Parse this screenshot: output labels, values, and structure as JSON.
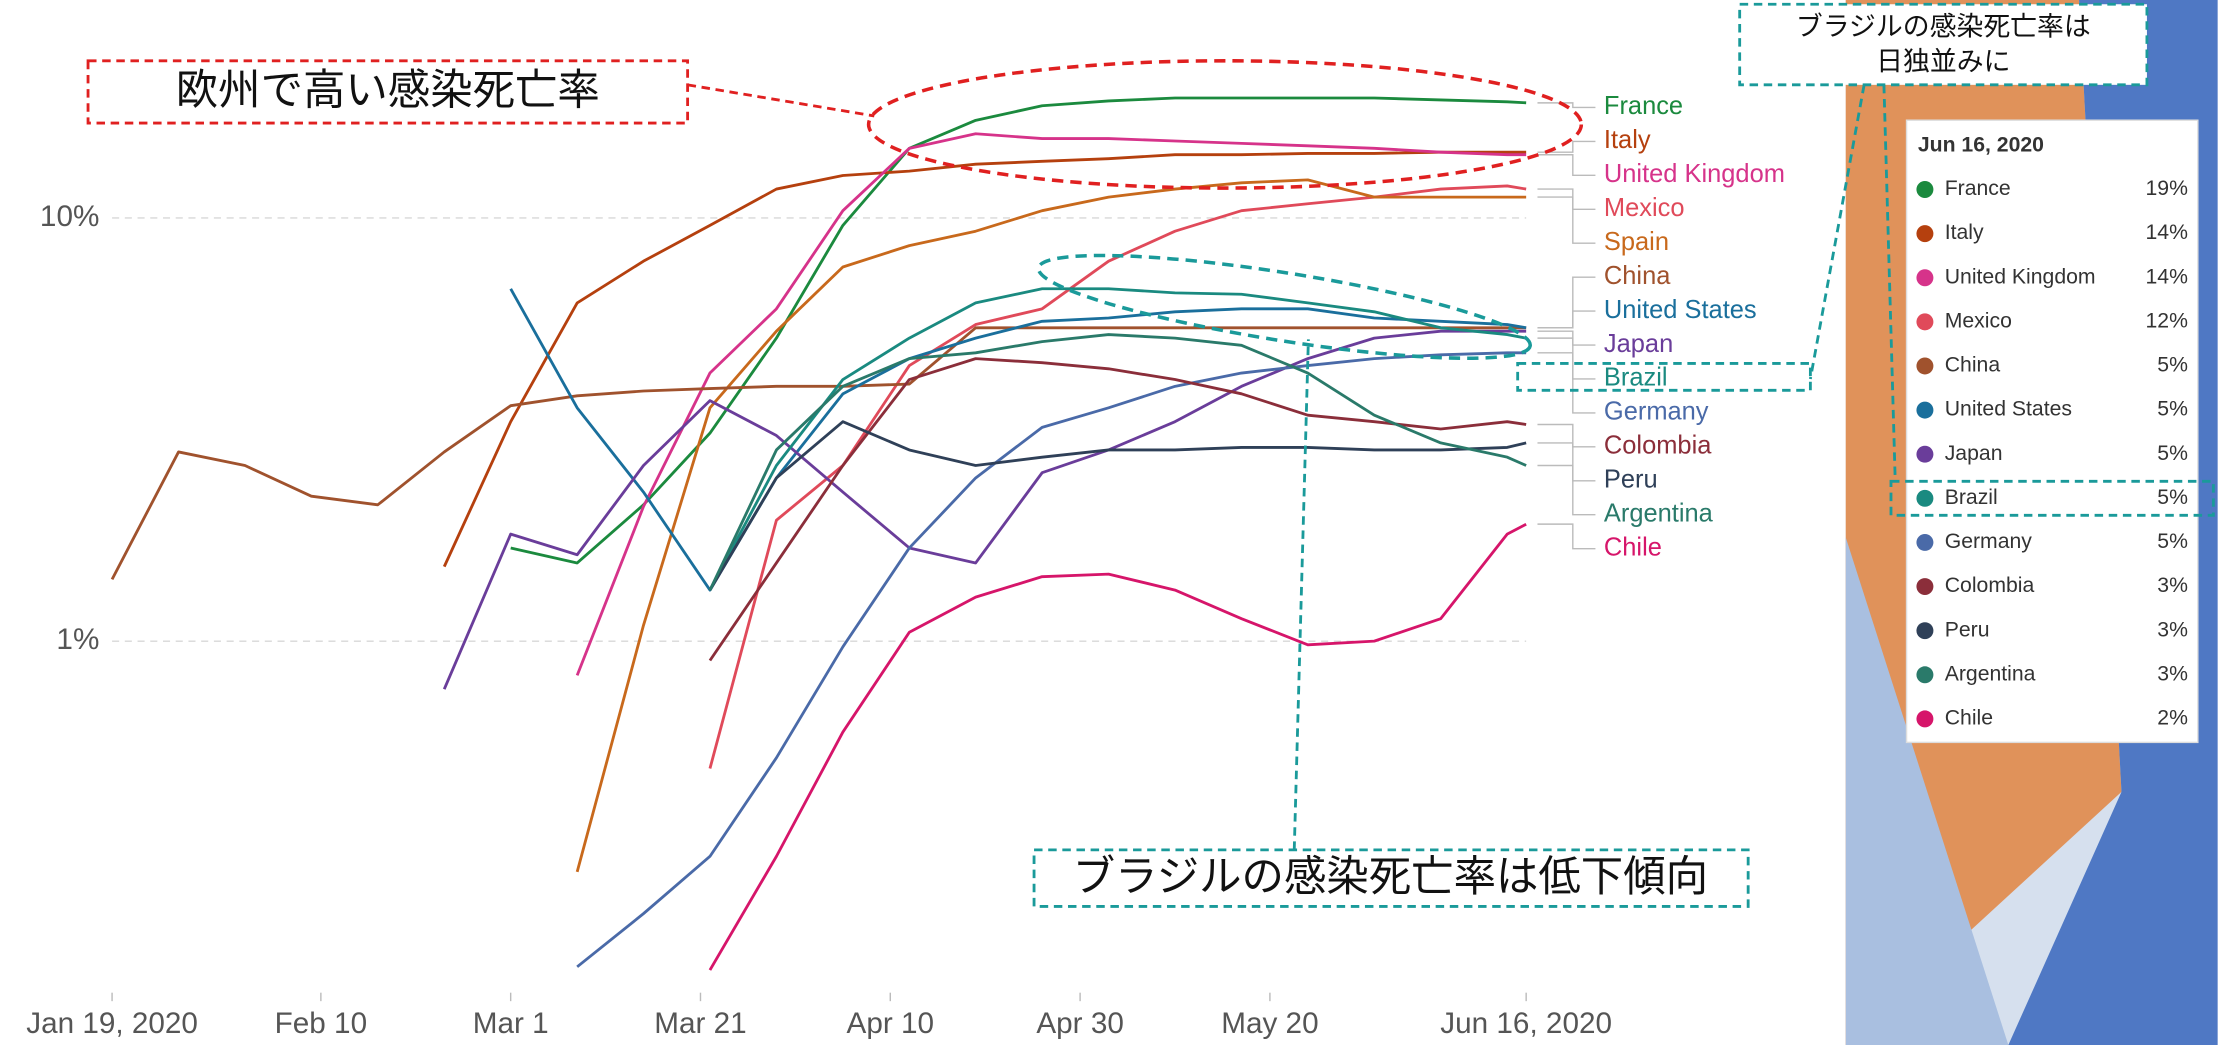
{
  "chart_data": {
    "type": "line",
    "log_y": true,
    "grid": true,
    "x": [
      "2020-01-19",
      "2020-01-26",
      "2020-02-02",
      "2020-02-09",
      "2020-02-16",
      "2020-02-23",
      "2020-03-01",
      "2020-03-08",
      "2020-03-15",
      "2020-03-22",
      "2020-03-29",
      "2020-04-05",
      "2020-04-12",
      "2020-04-19",
      "2020-04-26",
      "2020-05-03",
      "2020-05-10",
      "2020-05-17",
      "2020-05-24",
      "2020-05-31",
      "2020-06-07",
      "2020-06-14",
      "2020-06-16"
    ],
    "xlim": [
      "2020-01-19",
      "2020-06-16"
    ],
    "xticks": [
      {
        "value": "2020-01-19",
        "label": "Jan 19, 2020"
      },
      {
        "value": "2020-02-10",
        "label": "Feb 10"
      },
      {
        "value": "2020-03-01",
        "label": "Mar 1"
      },
      {
        "value": "2020-03-21",
        "label": "Mar 21"
      },
      {
        "value": "2020-04-10",
        "label": "Apr 10"
      },
      {
        "value": "2020-04-30",
        "label": "Apr 30"
      },
      {
        "value": "2020-05-20",
        "label": "May 20"
      },
      {
        "value": "2020-06-16",
        "label": "Jun 16, 2020"
      }
    ],
    "ylim": [
      0.15,
      25
    ],
    "yticks": [
      {
        "value": 1,
        "label": "1%"
      },
      {
        "value": 10,
        "label": "10%"
      }
    ],
    "series": [
      {
        "name": "France",
        "color": "#1b8a3e",
        "values": [
          null,
          null,
          null,
          null,
          null,
          null,
          1.66,
          1.53,
          2.1,
          3.1,
          5.2,
          9.6,
          14.6,
          17,
          18.4,
          18.9,
          19.2,
          19.2,
          19.2,
          19.2,
          19,
          18.8,
          18.7
        ]
      },
      {
        "name": "Italy",
        "color": "#b5400e",
        "values": [
          null,
          null,
          null,
          null,
          null,
          1.5,
          3.3,
          6.3,
          7.9,
          9.6,
          11.7,
          12.6,
          12.9,
          13.4,
          13.6,
          13.8,
          14.1,
          14.1,
          14.2,
          14.2,
          14.3,
          14.3,
          14.3
        ]
      },
      {
        "name": "United Kingdom",
        "color": "#d6338a",
        "values": [
          null,
          null,
          null,
          null,
          null,
          null,
          null,
          0.83,
          2.08,
          4.3,
          6.1,
          10.4,
          14.6,
          15.8,
          15.4,
          15.4,
          15.2,
          15.0,
          14.8,
          14.6,
          14.3,
          14.1,
          14.1
        ]
      },
      {
        "name": "Mexico",
        "color": "#e04a5a",
        "values": [
          null,
          null,
          null,
          null,
          null,
          null,
          null,
          null,
          null,
          0.5,
          1.93,
          2.6,
          4.48,
          5.6,
          6.1,
          7.9,
          9.3,
          10.4,
          10.8,
          11.2,
          11.7,
          11.9,
          11.7
        ]
      },
      {
        "name": "Spain",
        "color": "#c8691c",
        "values": [
          null,
          null,
          null,
          null,
          null,
          null,
          null,
          0.285,
          1.09,
          3.56,
          5.4,
          7.66,
          8.6,
          9.3,
          10.4,
          11.2,
          11.7,
          12.1,
          12.3,
          11.2,
          11.2,
          11.2,
          11.2
        ]
      },
      {
        "name": "China",
        "color": "#a0522d",
        "values": [
          1.4,
          2.8,
          2.6,
          2.2,
          2.1,
          2.8,
          3.6,
          3.8,
          3.9,
          3.95,
          4.0,
          4.0,
          4.05,
          5.5,
          5.5,
          5.5,
          5.5,
          5.5,
          5.5,
          5.5,
          5.5,
          5.5,
          5.5
        ]
      },
      {
        "name": "United States",
        "color": "#1a6f9c",
        "values": [
          null,
          null,
          null,
          null,
          null,
          null,
          6.8,
          3.56,
          2.25,
          1.32,
          2.43,
          3.84,
          4.65,
          5.2,
          5.7,
          5.8,
          6.0,
          6.1,
          6.1,
          5.8,
          5.7,
          5.6,
          5.5
        ]
      },
      {
        "name": "Japan",
        "color": "#6a3d9a",
        "values": [
          null,
          null,
          null,
          null,
          null,
          0.77,
          1.79,
          1.6,
          2.6,
          3.7,
          3.06,
          2.25,
          1.66,
          1.53,
          2.5,
          2.83,
          3.3,
          4.0,
          4.65,
          5.2,
          5.4,
          5.4,
          5.4
        ]
      },
      {
        "name": "Brazil",
        "color": "#1a8a80",
        "values": [
          null,
          null,
          null,
          null,
          null,
          null,
          null,
          null,
          null,
          1.32,
          2.6,
          4.15,
          5.2,
          6.3,
          6.8,
          6.8,
          6.65,
          6.6,
          6.3,
          6.0,
          5.5,
          5.3,
          5.2
        ]
      },
      {
        "name": "Germany",
        "color": "#4a6aa8",
        "values": [
          null,
          null,
          null,
          null,
          null,
          null,
          null,
          0.17,
          0.227,
          0.31,
          0.53,
          0.97,
          1.66,
          2.43,
          3.2,
          3.56,
          4.0,
          4.3,
          4.48,
          4.65,
          4.75,
          4.8,
          4.8
        ]
      },
      {
        "name": "Colombia",
        "color": "#8b2e3a",
        "values": [
          null,
          null,
          null,
          null,
          null,
          null,
          null,
          null,
          null,
          0.9,
          1.53,
          2.6,
          4.15,
          4.65,
          4.55,
          4.4,
          4.15,
          3.84,
          3.42,
          3.3,
          3.17,
          3.3,
          3.25
        ]
      },
      {
        "name": "Peru",
        "color": "#2f4058",
        "values": [
          null,
          null,
          null,
          null,
          null,
          null,
          null,
          null,
          null,
          1.32,
          2.43,
          3.3,
          2.83,
          2.6,
          2.72,
          2.83,
          2.83,
          2.87,
          2.87,
          2.83,
          2.83,
          2.87,
          2.94
        ]
      },
      {
        "name": "Argentina",
        "color": "#2a7a6a",
        "values": [
          null,
          null,
          null,
          null,
          null,
          null,
          null,
          null,
          null,
          1.32,
          2.83,
          4.0,
          4.65,
          4.8,
          5.1,
          5.3,
          5.2,
          5.0,
          4.3,
          3.42,
          2.94,
          2.72,
          2.6
        ]
      },
      {
        "name": "Chile",
        "color": "#d6156a",
        "values": [
          null,
          null,
          null,
          null,
          null,
          null,
          null,
          null,
          null,
          0.167,
          0.31,
          0.61,
          1.05,
          1.27,
          1.42,
          1.44,
          1.32,
          1.13,
          0.98,
          1.0,
          1.13,
          1.79,
          1.89
        ]
      }
    ],
    "annotations": [
      {
        "text": "欧州で高い感染死亡率"
      },
      {
        "lines": [
          "ブラジルの感染死亡率は",
          "日独並みに"
        ]
      },
      {
        "text": "ブラジルの感染死亡率は低下傾向"
      }
    ]
  },
  "tooltip": {
    "title": "Jun 16, 2020",
    "rows": [
      {
        "name": "France",
        "value": "19%"
      },
      {
        "name": "Italy",
        "value": "14%"
      },
      {
        "name": "United Kingdom",
        "value": "14%"
      },
      {
        "name": "Mexico",
        "value": "12%"
      },
      {
        "name": "China",
        "value": "5%"
      },
      {
        "name": "United States",
        "value": "5%"
      },
      {
        "name": "Japan",
        "value": "5%"
      },
      {
        "name": "Brazil",
        "value": "5%"
      },
      {
        "name": "Germany",
        "value": "5%"
      },
      {
        "name": "Colombia",
        "value": "3%"
      },
      {
        "name": "Peru",
        "value": "3%"
      },
      {
        "name": "Argentina",
        "value": "3%"
      },
      {
        "name": "Chile",
        "value": "2%"
      }
    ]
  }
}
